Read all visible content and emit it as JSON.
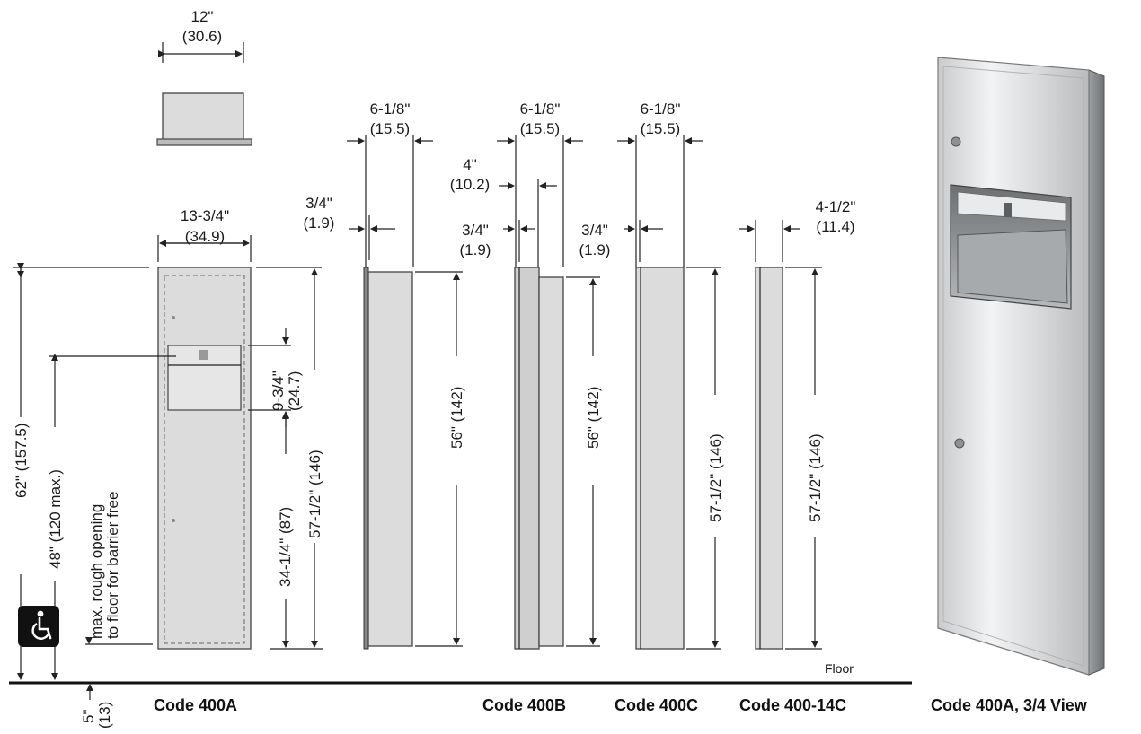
{
  "plan_view": {
    "width_in": "12\"",
    "width_cm": "(30.6)"
  },
  "code_400a": {
    "caption": "Code 400A",
    "width_in": "13-3/4\"",
    "width_cm": "(34.9)",
    "overall_height": "62\" (157.5)",
    "max_height": "48\" (120 max.)",
    "rough_opening_note_1": "max. rough opening",
    "rough_opening_note_2": "to floor for barrier free",
    "opening_height_in": "9-3/4\"",
    "opening_height_cm": "(24.7)",
    "opening_to_floor": "34-1/4\" (87)",
    "unit_height": "57-1/2\" (146)",
    "floor_offset_in": "5\"",
    "floor_offset_cm": "(13)",
    "accessibility_icon": "wheelchair-icon"
  },
  "code_400b_flange": {
    "depth_in": "6-1/8\"",
    "depth_cm": "(15.5)",
    "flange_in": "3/4\"",
    "flange_cm": "(1.9)",
    "height": "56\" (142)"
  },
  "code_400b": {
    "caption": "Code 400B",
    "depth_in": "6-1/8\"",
    "depth_cm": "(15.5)",
    "inner_in": "4\"",
    "inner_cm": "(10.2)",
    "flange_in": "3/4\"",
    "flange_cm": "(1.9)",
    "height": "56\" (142)"
  },
  "code_400c": {
    "caption": "Code 400C",
    "depth_in": "6-1/8\"",
    "depth_cm": "(15.5)",
    "flange_in": "3/4\"",
    "flange_cm": "(1.9)",
    "height": "57-1/2\" (146)"
  },
  "code_400_14c": {
    "caption": "Code 400-14C",
    "depth_in": "4-1/2\"",
    "depth_cm": "(11.4)",
    "height": "57-1/2\" (146)"
  },
  "floor_label": "Floor",
  "three_quarter_view": {
    "caption": "Code 400A, 3/4 View"
  }
}
